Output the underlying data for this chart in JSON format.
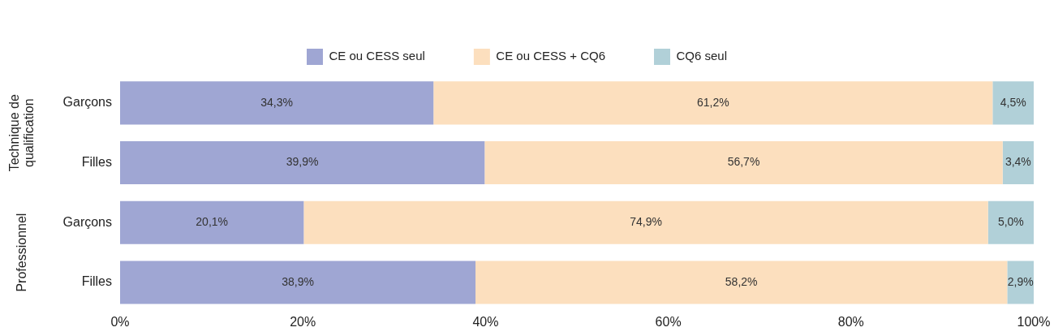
{
  "chart_data": {
    "type": "bar",
    "orientation": "horizontal",
    "stacked": true,
    "categories": [
      "Garçons",
      "Filles",
      "Garçons",
      "Filles"
    ],
    "series": [
      {
        "name": "CE ou CESS seul",
        "color": "#9fa6d3",
        "values": [
          34.3,
          39.9,
          20.1,
          38.9
        ],
        "value_labels": [
          "34,3%",
          "39,9%",
          "20,1%",
          "38,9%"
        ]
      },
      {
        "name": "CE ou CESS + CQ6",
        "color": "#fcdfbe",
        "values": [
          61.2,
          56.7,
          74.9,
          58.2
        ],
        "value_labels": [
          "61,2%",
          "56,7%",
          "74,9%",
          "58,2%"
        ]
      },
      {
        "name": "CQ6 seul",
        "color": "#b1d0d8",
        "values": [
          4.5,
          3.4,
          5.0,
          2.9
        ],
        "value_labels": [
          "4,5%",
          "3,4%",
          "5,0%",
          "2,9%"
        ]
      }
    ],
    "annotations": [
      "Technique de qualification",
      "Professionnel"
    ],
    "xlim": [
      0,
      100
    ],
    "xticks": [
      {
        "value": 0,
        "label": "0%"
      },
      {
        "value": 20,
        "label": "20%"
      },
      {
        "value": 40,
        "label": "40%"
      },
      {
        "value": 60,
        "label": "60%"
      },
      {
        "value": 80,
        "label": "80%"
      },
      {
        "value": 100,
        "label": "100%"
      }
    ],
    "grid": false,
    "legend": "top"
  }
}
